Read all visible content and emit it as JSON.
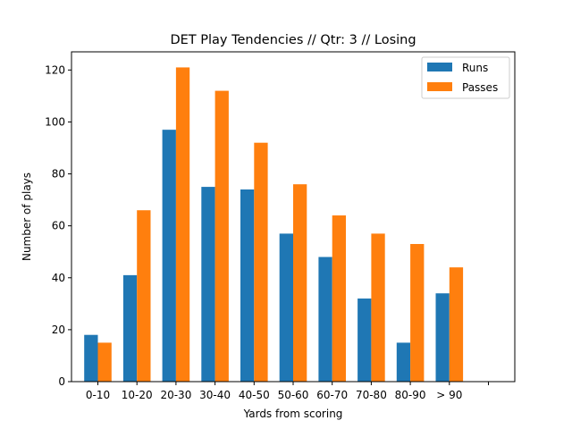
{
  "chart_data": {
    "type": "bar",
    "title": "DET Play Tendencies // Qtr: 3 // Losing",
    "xlabel": "Yards from scoring",
    "ylabel": "Number of plays",
    "categories": [
      "0-10",
      "10-20",
      "20-30",
      "30-40",
      "40-50",
      "50-60",
      "60-70",
      "70-80",
      "80-90",
      "> 90",
      ""
    ],
    "series": [
      {
        "name": "Runs",
        "color": "#1f77b4",
        "values": [
          18,
          41,
          97,
          75,
          74,
          57,
          48,
          32,
          15,
          34,
          0
        ]
      },
      {
        "name": "Passes",
        "color": "#ff7f0e",
        "values": [
          15,
          66,
          121,
          112,
          92,
          76,
          64,
          57,
          53,
          44,
          0
        ]
      }
    ],
    "ylim": [
      0,
      127
    ],
    "yticks": [
      0,
      20,
      40,
      60,
      80,
      100,
      120
    ],
    "legend": "top-right",
    "grid": false
  }
}
